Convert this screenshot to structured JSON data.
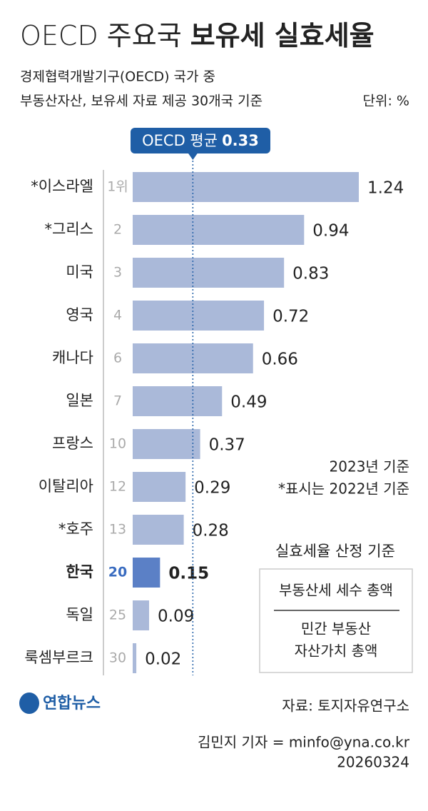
{
  "chart_data": {
    "type": "hbar",
    "title_light": "OECD 주요국",
    "title_bold": "보유세 실효세율",
    "subtitle": [
      "경제협력개발기구(OECD) 국가 중",
      "부동산자산, 보유세 자료 제공 30개국 기준"
    ],
    "unit": "단위: %",
    "categories": [
      "*이스라엘",
      "*그리스",
      "미국",
      "영국",
      "캐나다",
      "일본",
      "프랑스",
      "이탈리아",
      "*호주",
      "한국",
      "독일",
      "룩셈부르크"
    ],
    "ranks": [
      "1위",
      "2",
      "3",
      "4",
      "6",
      "7",
      "10",
      "12",
      "13",
      "20",
      "25",
      "30"
    ],
    "values": [
      1.24,
      0.94,
      0.83,
      0.72,
      0.66,
      0.49,
      0.37,
      0.29,
      0.28,
      0.15,
      0.09,
      0.02
    ],
    "color": "#aab9d9",
    "highlight": "한국",
    "highlight_color": "#5b80c6",
    "average": {
      "label": "OECD 평균",
      "value": 0.33
    },
    "notes": [
      "2023년 기준",
      "*표시는  2022년 기준"
    ],
    "formula": {
      "title": "실효세율 산정 기준",
      "numerator": "부동산세 세수 총액",
      "denominator": [
        "민간 부동산",
        "자산가치 총액"
      ]
    },
    "logo": "연합뉴스",
    "source": "자료: 토지자유연구소",
    "credit": "김민지 기자 = minfo@yna.co.kr",
    "date": "20260324"
  }
}
